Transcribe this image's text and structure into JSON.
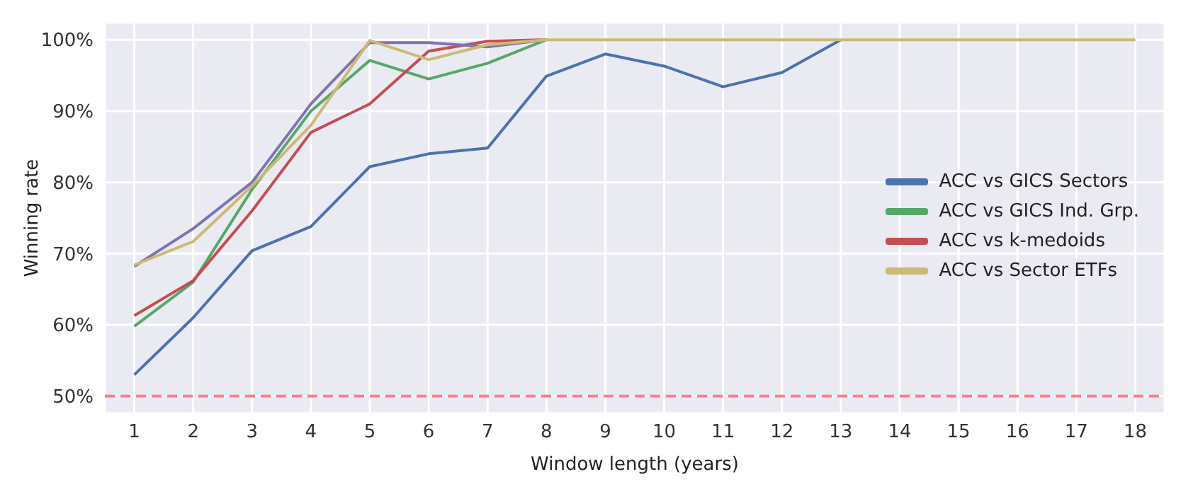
{
  "chart_data": {
    "type": "line",
    "xlabel": "Window length (years)",
    "ylabel": "Winning rate",
    "x": [
      1,
      2,
      3,
      4,
      5,
      6,
      7,
      8,
      9,
      10,
      11,
      12,
      13,
      14,
      15,
      16,
      17,
      18
    ],
    "xlim": [
      0.5,
      18.5
    ],
    "xticks": [
      1,
      2,
      3,
      4,
      5,
      6,
      7,
      8,
      9,
      10,
      11,
      12,
      13,
      14,
      15,
      16,
      17,
      18
    ],
    "ylim": [
      47.6,
      102.4
    ],
    "yticks": [
      {
        "value": 50,
        "label": "50%"
      },
      {
        "value": 60,
        "label": "60%"
      },
      {
        "value": 70,
        "label": "70%"
      },
      {
        "value": 80,
        "label": "80%"
      },
      {
        "value": 90,
        "label": "90%"
      },
      {
        "value": 100,
        "label": "100%"
      }
    ],
    "grid": true,
    "legend": "right",
    "marker": "none",
    "line_style": "solid",
    "ref_lines": [
      {
        "axis": "y",
        "value": 50,
        "color": "#ff8080",
        "line_style": "dashed"
      }
    ],
    "series": [
      {
        "name": "ACC vs GICS Sectors",
        "color": "#4c72b0",
        "values": [
          53,
          61,
          70.4,
          73.8,
          82.2,
          84,
          84.8,
          94.9,
          98,
          96.3,
          93.4,
          95.4,
          100,
          null,
          null,
          null,
          null,
          null
        ]
      },
      {
        "name": "ACC vs GICS Ind. Grp.",
        "color": "#55a868",
        "values": [
          59.8,
          66,
          79,
          90,
          97.1,
          94.5,
          96.7,
          100,
          null,
          null,
          null,
          null,
          null,
          null,
          null,
          null,
          null,
          null
        ]
      },
      {
        "name": "ACC vs k-medoids",
        "color": "#c44e52",
        "values": [
          61.3,
          66.2,
          76,
          87,
          91,
          98.4,
          99.8,
          100,
          null,
          null,
          null,
          null,
          null,
          null,
          null,
          null,
          null,
          null
        ]
      },
      {
        "color": "#8172b2",
        "values": [
          68.2,
          73.5,
          80,
          91,
          99.6,
          99.6,
          99,
          100,
          null,
          null,
          null,
          null,
          null,
          null,
          null,
          null,
          null,
          null
        ]
      },
      {
        "name": "ACC vs Sector ETFs",
        "color": "#ccb974",
        "values": [
          68.4,
          71.7,
          79.5,
          88,
          99.9,
          97.2,
          99.3,
          100,
          100,
          100,
          100,
          100,
          100,
          100,
          100,
          100,
          100,
          100
        ]
      }
    ]
  }
}
